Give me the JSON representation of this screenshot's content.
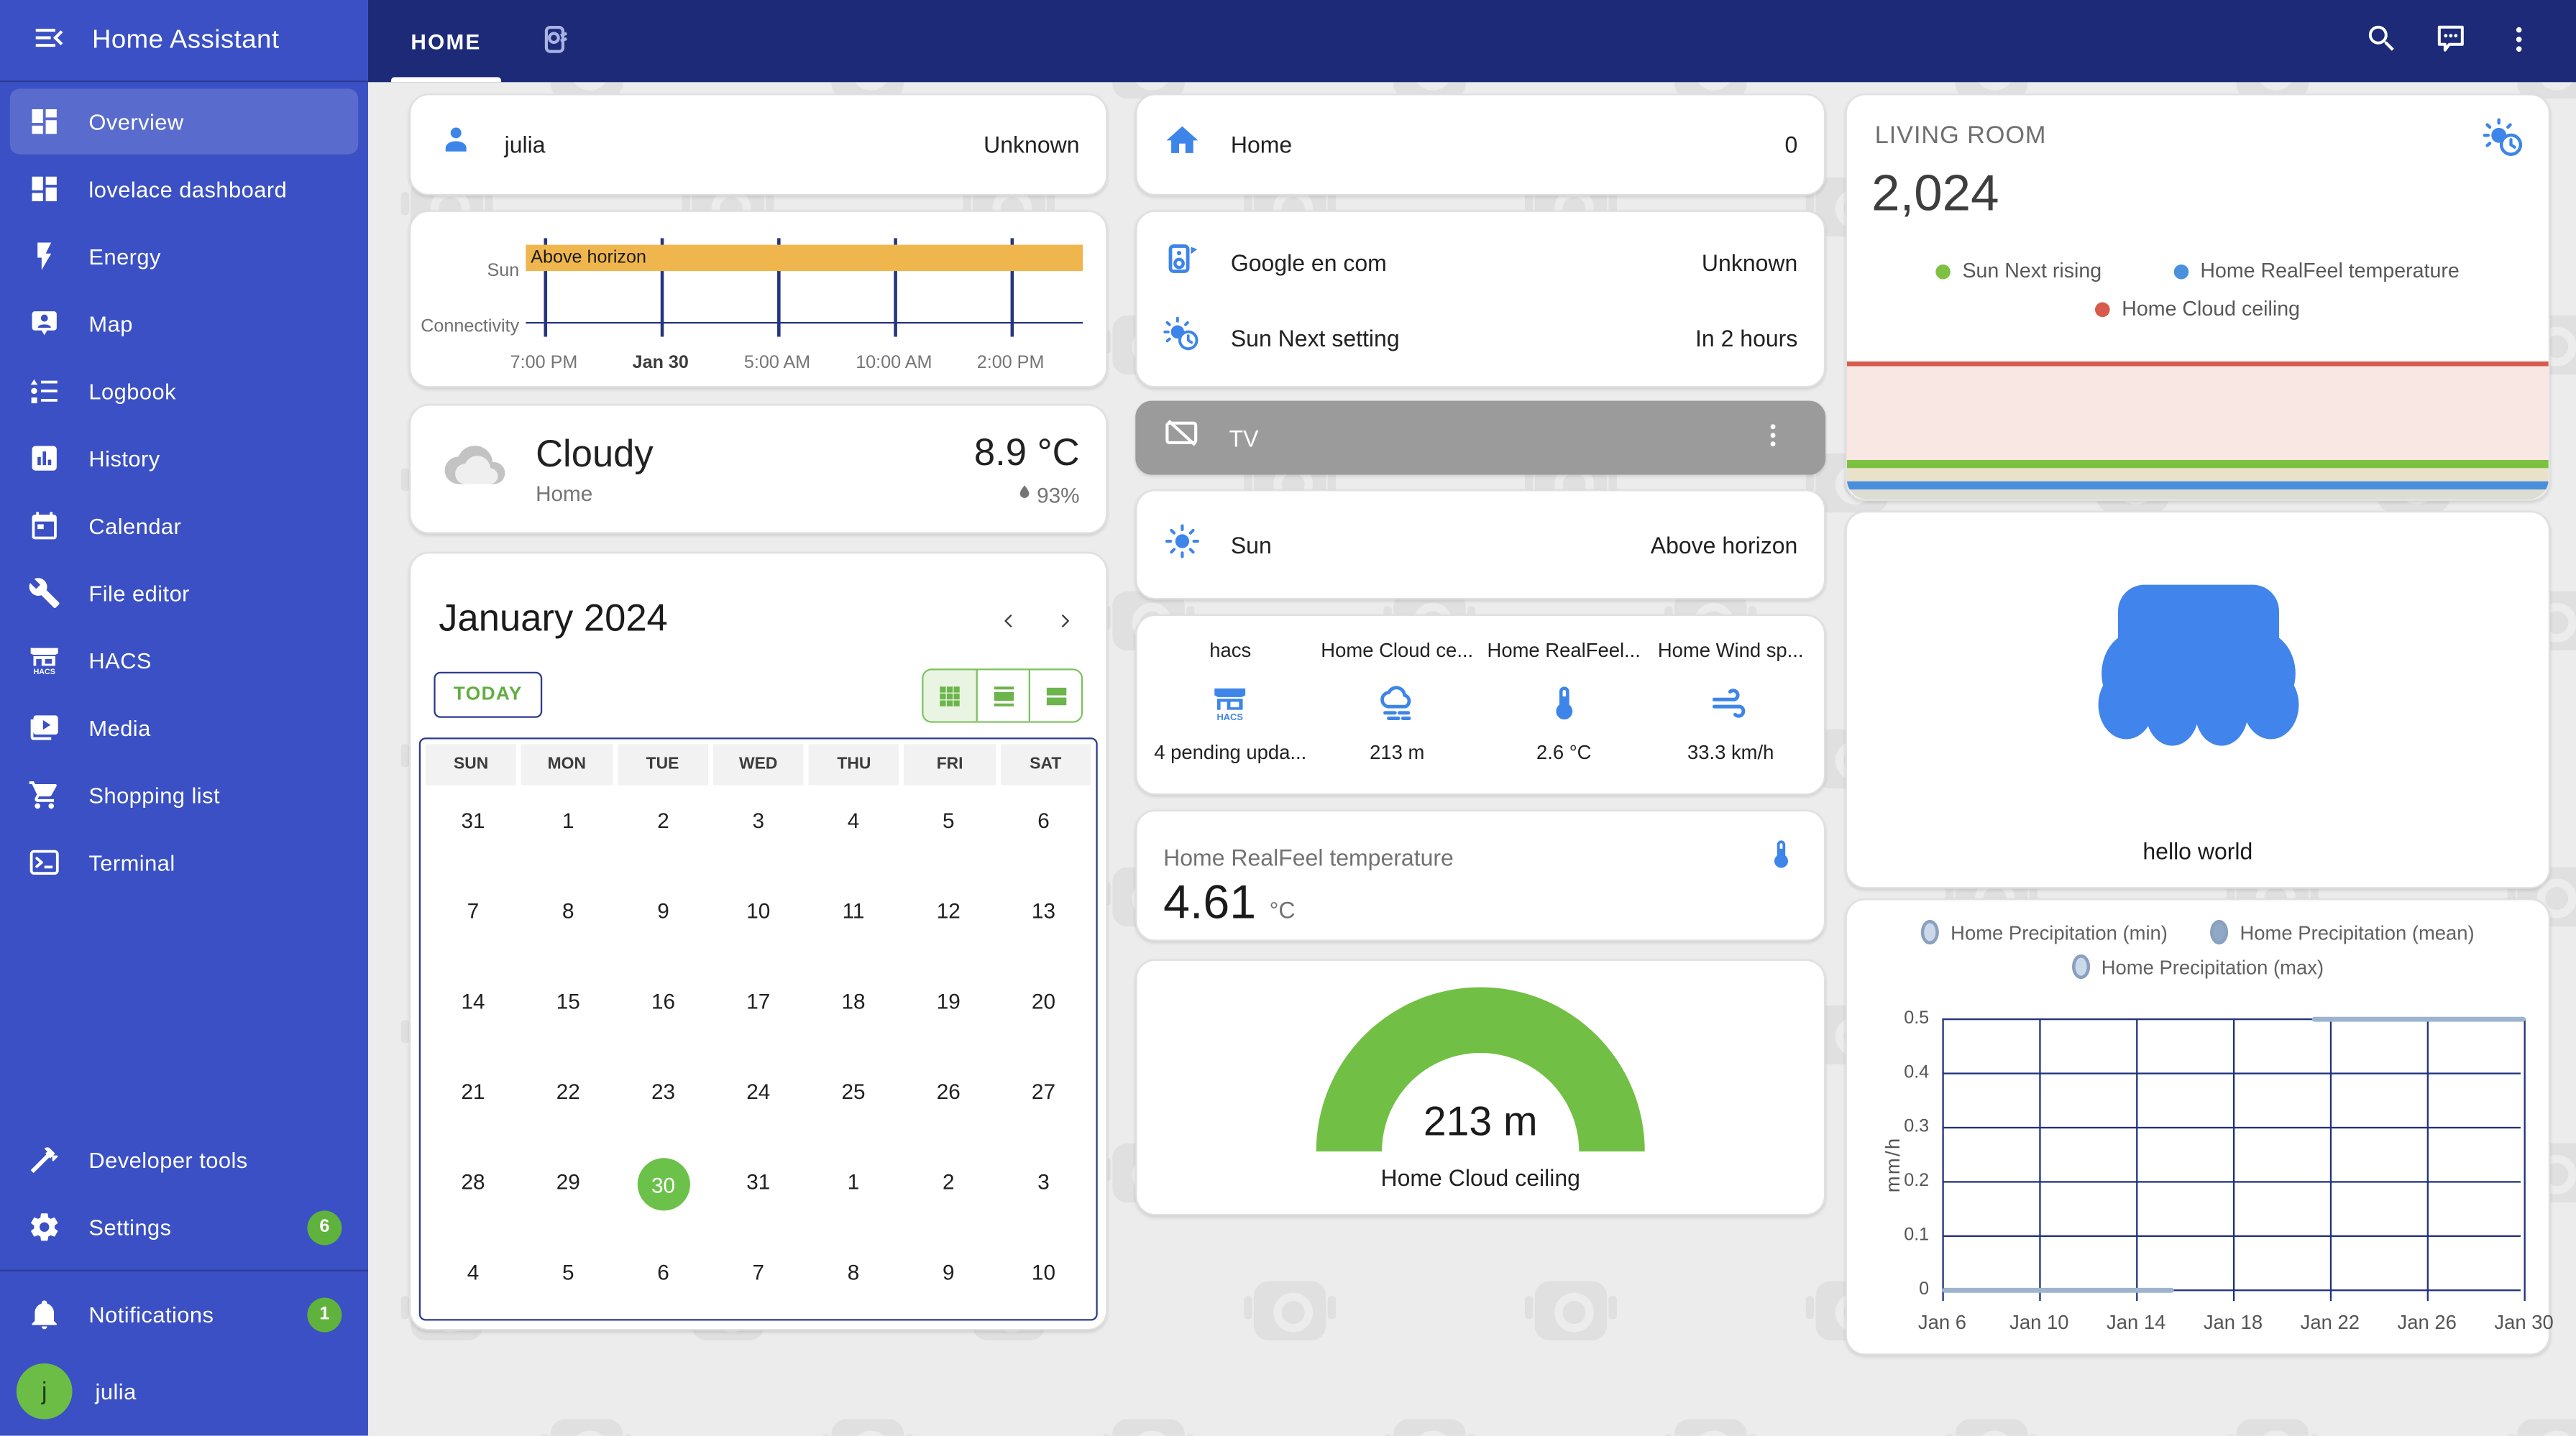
{
  "app_title": "Home Assistant",
  "topbar": {
    "tab": "HOME"
  },
  "sidebar": {
    "items": [
      {
        "label": "Overview"
      },
      {
        "label": "lovelace dashboard"
      },
      {
        "label": "Energy"
      },
      {
        "label": "Map"
      },
      {
        "label": "Logbook"
      },
      {
        "label": "History"
      },
      {
        "label": "Calendar"
      },
      {
        "label": "File editor"
      },
      {
        "label": "HACS"
      },
      {
        "label": "Media"
      },
      {
        "label": "Shopping list"
      },
      {
        "label": "Terminal"
      }
    ],
    "developer_tools": "Developer tools",
    "settings": "Settings",
    "settings_badge": "6",
    "notifications": "Notifications",
    "notifications_badge": "1",
    "user": "julia",
    "user_initial": "j"
  },
  "person_card": {
    "name": "julia",
    "state": "Unknown"
  },
  "history_card": {
    "rows": [
      {
        "label": "Sun",
        "bar": "Above horizon"
      },
      {
        "label": "Connectivity"
      }
    ],
    "ticks": [
      "7:00 PM",
      "Jan 30",
      "5:00 AM",
      "10:00 AM",
      "2:00 PM"
    ],
    "bar_color": "#f0b64e"
  },
  "weather_card": {
    "condition": "Cloudy",
    "location": "Home",
    "temperature": "8.9 °C",
    "humidity": "93%"
  },
  "calendar_card": {
    "title": "January 2024",
    "today_button": "TODAY",
    "weekdays": [
      "SUN",
      "MON",
      "TUE",
      "WED",
      "THU",
      "FRI",
      "SAT"
    ],
    "weeks": [
      [
        "31",
        "1",
        "2",
        "3",
        "4",
        "5",
        "6"
      ],
      [
        "7",
        "8",
        "9",
        "10",
        "11",
        "12",
        "13"
      ],
      [
        "14",
        "15",
        "16",
        "17",
        "18",
        "19",
        "20"
      ],
      [
        "21",
        "22",
        "23",
        "24",
        "25",
        "26",
        "27"
      ],
      [
        "28",
        "29",
        "30",
        "31",
        "1",
        "2",
        "3"
      ],
      [
        "4",
        "5",
        "6",
        "7",
        "8",
        "9",
        "10"
      ]
    ],
    "selected_day": "30",
    "selected_color": "#6cc14b"
  },
  "area_card": {
    "name": "Home",
    "value": "0"
  },
  "entities_card": {
    "rows": [
      {
        "name": "Google en com",
        "state": "Unknown"
      },
      {
        "name": "Sun Next setting",
        "state": "In 2 hours"
      }
    ]
  },
  "tv_card": {
    "name": "TV"
  },
  "sun_card": {
    "name": "Sun",
    "state": "Above horizon"
  },
  "glance_card": {
    "items": [
      {
        "label": "hacs",
        "value": "4 pending upda..."
      },
      {
        "label": "Home Cloud ce...",
        "value": "213 m"
      },
      {
        "label": "Home RealFeel...",
        "value": "2.6 °C"
      },
      {
        "label": "Home Wind sp...",
        "value": "33.3 km/h"
      }
    ]
  },
  "realfeel_card": {
    "title": "Home RealFeel temperature",
    "value": "4.61",
    "unit": "°C"
  },
  "gauge_card": {
    "value": "213 m",
    "label": "Home Cloud ceiling",
    "color": "#71bf44"
  },
  "livingroom_card": {
    "title": "LIVING ROOM",
    "number": "2,024",
    "legend": [
      {
        "label": "Sun Next rising",
        "color": "#7cc142"
      },
      {
        "label": "Home RealFeel temperature",
        "color": "#4a90dd"
      },
      {
        "label": "Home Cloud ceiling",
        "color": "#d75a4a"
      }
    ]
  },
  "logo_card": {
    "caption": "hello world"
  },
  "precip_card": {
    "legend": [
      {
        "label": "Home Precipitation (min)"
      },
      {
        "label": "Home Precipitation (mean)"
      },
      {
        "label": "Home Precipitation (max)"
      }
    ],
    "ylabel": "mm/h",
    "yticks": [
      "0.5",
      "0.4",
      "0.3",
      "0.2",
      "0.1",
      "0"
    ],
    "xticks": [
      "Jan 6",
      "Jan 10",
      "Jan 14",
      "Jan 18",
      "Jan 22",
      "Jan 26",
      "Jan 30"
    ],
    "chart_data": {
      "type": "line",
      "ylim": [
        0,
        0.5
      ],
      "series": [
        {
          "name": "flat line at 0 mm/h",
          "x_start": "Jan 6",
          "x_end": "Jan 15",
          "y": 0
        },
        {
          "name": "flat line at 0.5 mm/h",
          "x_start": "Jan 21",
          "x_end": "Jan 30",
          "y": 0.5
        }
      ]
    }
  }
}
